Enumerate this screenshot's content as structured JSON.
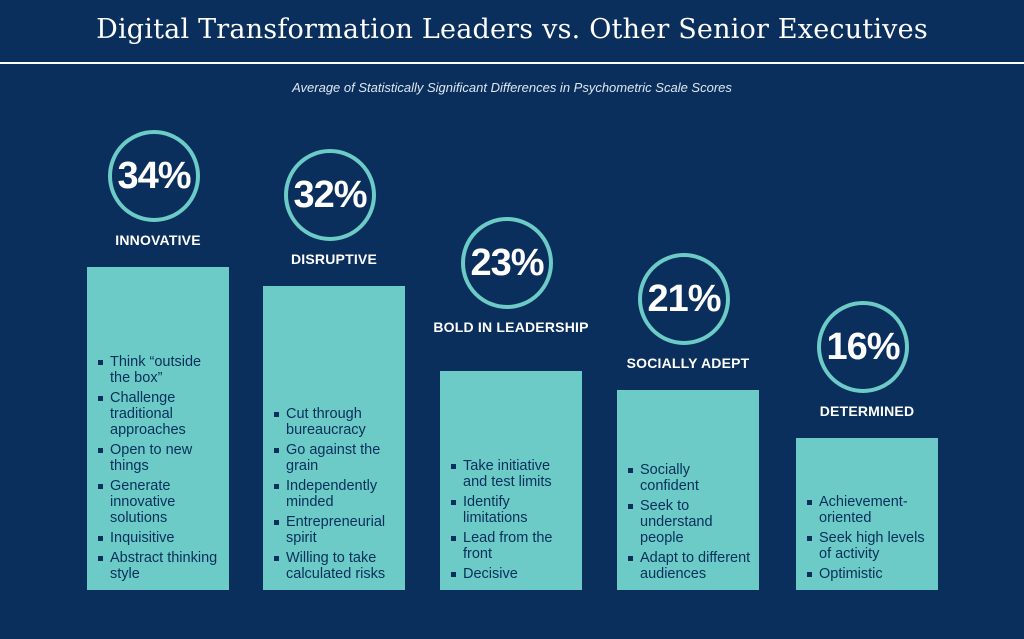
{
  "header": {
    "title": "Digital Transformation Leaders vs. Other Senior Executives",
    "subtitle": "Average of Statistically Significant Differences in Psychometric Scale Scores"
  },
  "colors": {
    "background": "#0a2f5c",
    "bar": "#6ccbc7",
    "ring": "#6ccbc7",
    "text_on_bar": "#0a2f5c"
  },
  "chart_data": {
    "type": "bar",
    "title": "Digital Transformation Leaders vs. Other Senior Executives",
    "subtitle": "Average of Statistically Significant Differences in Psychometric Scale Scores",
    "categories": [
      "INNOVATIVE",
      "DISRUPTIVE",
      "BOLD IN LEADERSHIP",
      "SOCIALLY ADEPT",
      "DETERMINED"
    ],
    "values": [
      34,
      32,
      23,
      21,
      16
    ],
    "value_labels": [
      "34%",
      "32%",
      "23%",
      "21%",
      "16%"
    ],
    "xlabel": "",
    "ylabel": "",
    "grid": false,
    "legend": "none",
    "traits": [
      [
        "Think “outside the box”",
        "Challenge traditional approaches",
        "Open to new things",
        "Generate innovative solutions",
        "Inquisitive",
        "Abstract thinking style"
      ],
      [
        "Cut through bureaucracy",
        "Go against the grain",
        "Independently minded",
        "Entrepreneurial spirit",
        "Willing to take calculated risks"
      ],
      [
        "Take initiative and test limits",
        "Identify limitations",
        "Lead from the front",
        "Decisive"
      ],
      [
        "Socially confident",
        "Seek to understand people",
        "Adapt to different audiences"
      ],
      [
        "Achievement-oriented",
        "Seek high levels of activity",
        "Optimistic"
      ]
    ]
  }
}
